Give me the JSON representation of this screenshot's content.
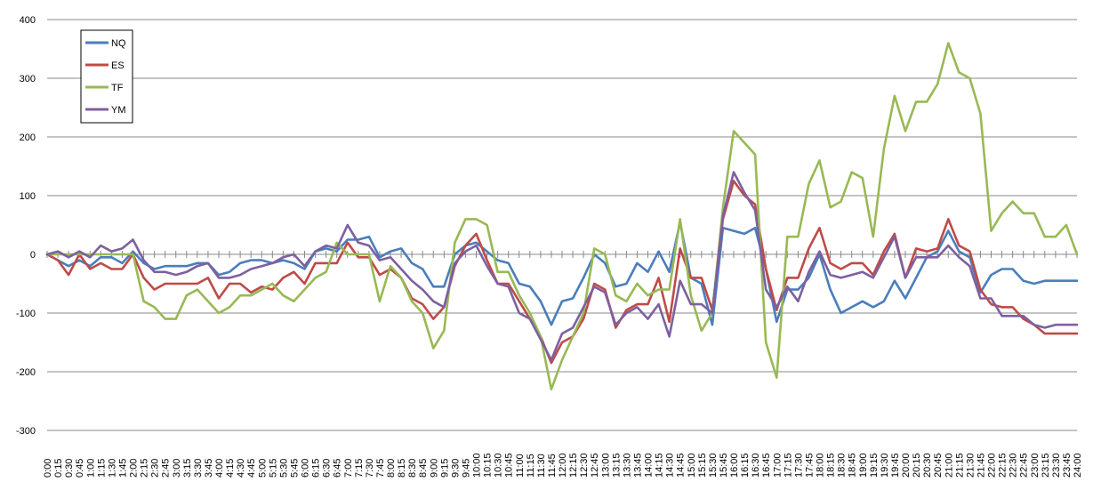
{
  "chart_data": {
    "type": "line",
    "title": "",
    "xlabel": "",
    "ylabel": "",
    "ylim": [
      -300,
      400
    ],
    "yticks": [
      -300,
      -200,
      -100,
      0,
      100,
      200,
      300,
      400
    ],
    "grid": true,
    "legend": "top-left",
    "categories": [
      "0:00",
      "0:15",
      "0:30",
      "0:45",
      "1:00",
      "1:15",
      "1:30",
      "1:45",
      "2:00",
      "2:15",
      "2:30",
      "2:45",
      "3:00",
      "3:15",
      "3:30",
      "3:45",
      "4:00",
      "4:15",
      "4:30",
      "4:45",
      "5:00",
      "5:15",
      "5:30",
      "5:45",
      "6:00",
      "6:15",
      "6:30",
      "6:45",
      "7:00",
      "7:15",
      "7:30",
      "7:45",
      "8:00",
      "8:15",
      "8:30",
      "8:45",
      "9:00",
      "9:15",
      "9:30",
      "9:45",
      "10:00",
      "10:15",
      "10:30",
      "10:45",
      "11:00",
      "11:15",
      "11:30",
      "11:45",
      "12:00",
      "12:15",
      "12:30",
      "12:45",
      "13:00",
      "13:15",
      "13:30",
      "13:45",
      "14:00",
      "14:15",
      "14:30",
      "14:45",
      "15:00",
      "15:15",
      "15:30",
      "15:45",
      "16:00",
      "16:15",
      "16:30",
      "16:45",
      "17:00",
      "17:15",
      "17:30",
      "17:45",
      "18:00",
      "18:15",
      "18:30",
      "18:45",
      "19:00",
      "19:15",
      "19:30",
      "19:45",
      "20:00",
      "20:15",
      "20:30",
      "20:45",
      "21:00",
      "21:15",
      "21:30",
      "21:45",
      "22:00",
      "22:15",
      "22:30",
      "22:45",
      "23:00",
      "23:15",
      "23:30",
      "23:45",
      "24:00"
    ],
    "series": [
      {
        "name": "NQ",
        "color": "#4a7ebb",
        "values": [
          0,
          -10,
          -20,
          -10,
          -20,
          -5,
          -5,
          -15,
          5,
          -15,
          -25,
          -20,
          -20,
          -20,
          -15,
          -15,
          -35,
          -30,
          -15,
          -10,
          -10,
          -15,
          -10,
          -15,
          -25,
          5,
          10,
          5,
          25,
          25,
          30,
          -5,
          5,
          10,
          -15,
          -25,
          -55,
          -55,
          0,
          15,
          20,
          5,
          -10,
          -15,
          -50,
          -55,
          -80,
          -120,
          -80,
          -75,
          -40,
          0,
          -15,
          -55,
          -50,
          -15,
          -30,
          5,
          -30,
          55,
          -40,
          -50,
          -120,
          45,
          40,
          35,
          45,
          -25,
          -115,
          -60,
          -60,
          -40,
          0,
          -60,
          -100,
          -90,
          -80,
          -90,
          -80,
          -45,
          -75,
          -40,
          -5,
          5,
          40,
          5,
          -5,
          -65,
          -35,
          -25,
          -25,
          -45,
          -50,
          -45,
          -45,
          -45,
          -45
        ]
      },
      {
        "name": "ES",
        "color": "#be4b48",
        "values": [
          0,
          -10,
          -35,
          0,
          -25,
          -15,
          -25,
          -25,
          0,
          -40,
          -60,
          -50,
          -50,
          -50,
          -50,
          -40,
          -75,
          -50,
          -50,
          -65,
          -55,
          -60,
          -40,
          -30,
          -50,
          -15,
          -15,
          -15,
          20,
          -5,
          -5,
          -35,
          -25,
          -40,
          -75,
          -85,
          -110,
          -90,
          -20,
          15,
          35,
          -10,
          -50,
          -50,
          -80,
          -110,
          -140,
          -185,
          -150,
          -140,
          -110,
          -50,
          -60,
          -125,
          -95,
          -85,
          -85,
          -40,
          -115,
          10,
          -40,
          -40,
          -95,
          60,
          125,
          100,
          85,
          -25,
          -95,
          -40,
          -40,
          10,
          45,
          -15,
          -25,
          -15,
          -15,
          -35,
          5,
          35,
          -40,
          10,
          5,
          10,
          60,
          15,
          5,
          -60,
          -85,
          -90,
          -90,
          -110,
          -120,
          -135,
          -135,
          -135,
          -135
        ]
      },
      {
        "name": "TF",
        "color": "#98b954",
        "values": [
          0,
          0,
          0,
          0,
          0,
          0,
          0,
          0,
          0,
          -80,
          -90,
          -110,
          -110,
          -70,
          -60,
          -80,
          -100,
          -90,
          -70,
          -70,
          -60,
          -50,
          -70,
          -80,
          -60,
          -40,
          -30,
          20,
          0,
          0,
          0,
          -80,
          -20,
          -40,
          -80,
          -100,
          -160,
          -130,
          20,
          60,
          60,
          50,
          -30,
          -30,
          -70,
          -100,
          -140,
          -230,
          -180,
          -140,
          -100,
          10,
          0,
          -70,
          -80,
          -50,
          -70,
          -60,
          -60,
          60,
          -70,
          -130,
          -100,
          80,
          210,
          190,
          170,
          -150,
          -210,
          30,
          30,
          120,
          160,
          80,
          90,
          140,
          130,
          30,
          180,
          270,
          210,
          260,
          260,
          290,
          360,
          310,
          300,
          240,
          40,
          70,
          90,
          70,
          70,
          30,
          30,
          50,
          0
        ]
      },
      {
        "name": "YM",
        "color": "#7d60a0",
        "values": [
          0,
          5,
          -5,
          5,
          -5,
          15,
          5,
          10,
          25,
          -10,
          -30,
          -30,
          -35,
          -30,
          -20,
          -15,
          -40,
          -40,
          -35,
          -25,
          -20,
          -15,
          -5,
          0,
          -20,
          5,
          15,
          10,
          50,
          20,
          15,
          -10,
          -5,
          -25,
          -45,
          -60,
          -80,
          -90,
          -15,
          5,
          15,
          -20,
          -50,
          -55,
          -100,
          -110,
          -145,
          -180,
          -135,
          -125,
          -90,
          -55,
          -65,
          -120,
          -100,
          -90,
          -110,
          -85,
          -140,
          -45,
          -85,
          -85,
          -100,
          65,
          140,
          105,
          75,
          -60,
          -90,
          -55,
          -80,
          -30,
          5,
          -35,
          -40,
          -35,
          -30,
          -40,
          -5,
          30,
          -40,
          -5,
          -5,
          -5,
          15,
          -5,
          -20,
          -75,
          -75,
          -105,
          -105,
          -105,
          -120,
          -125,
          -120,
          -120,
          -120
        ]
      }
    ]
  }
}
